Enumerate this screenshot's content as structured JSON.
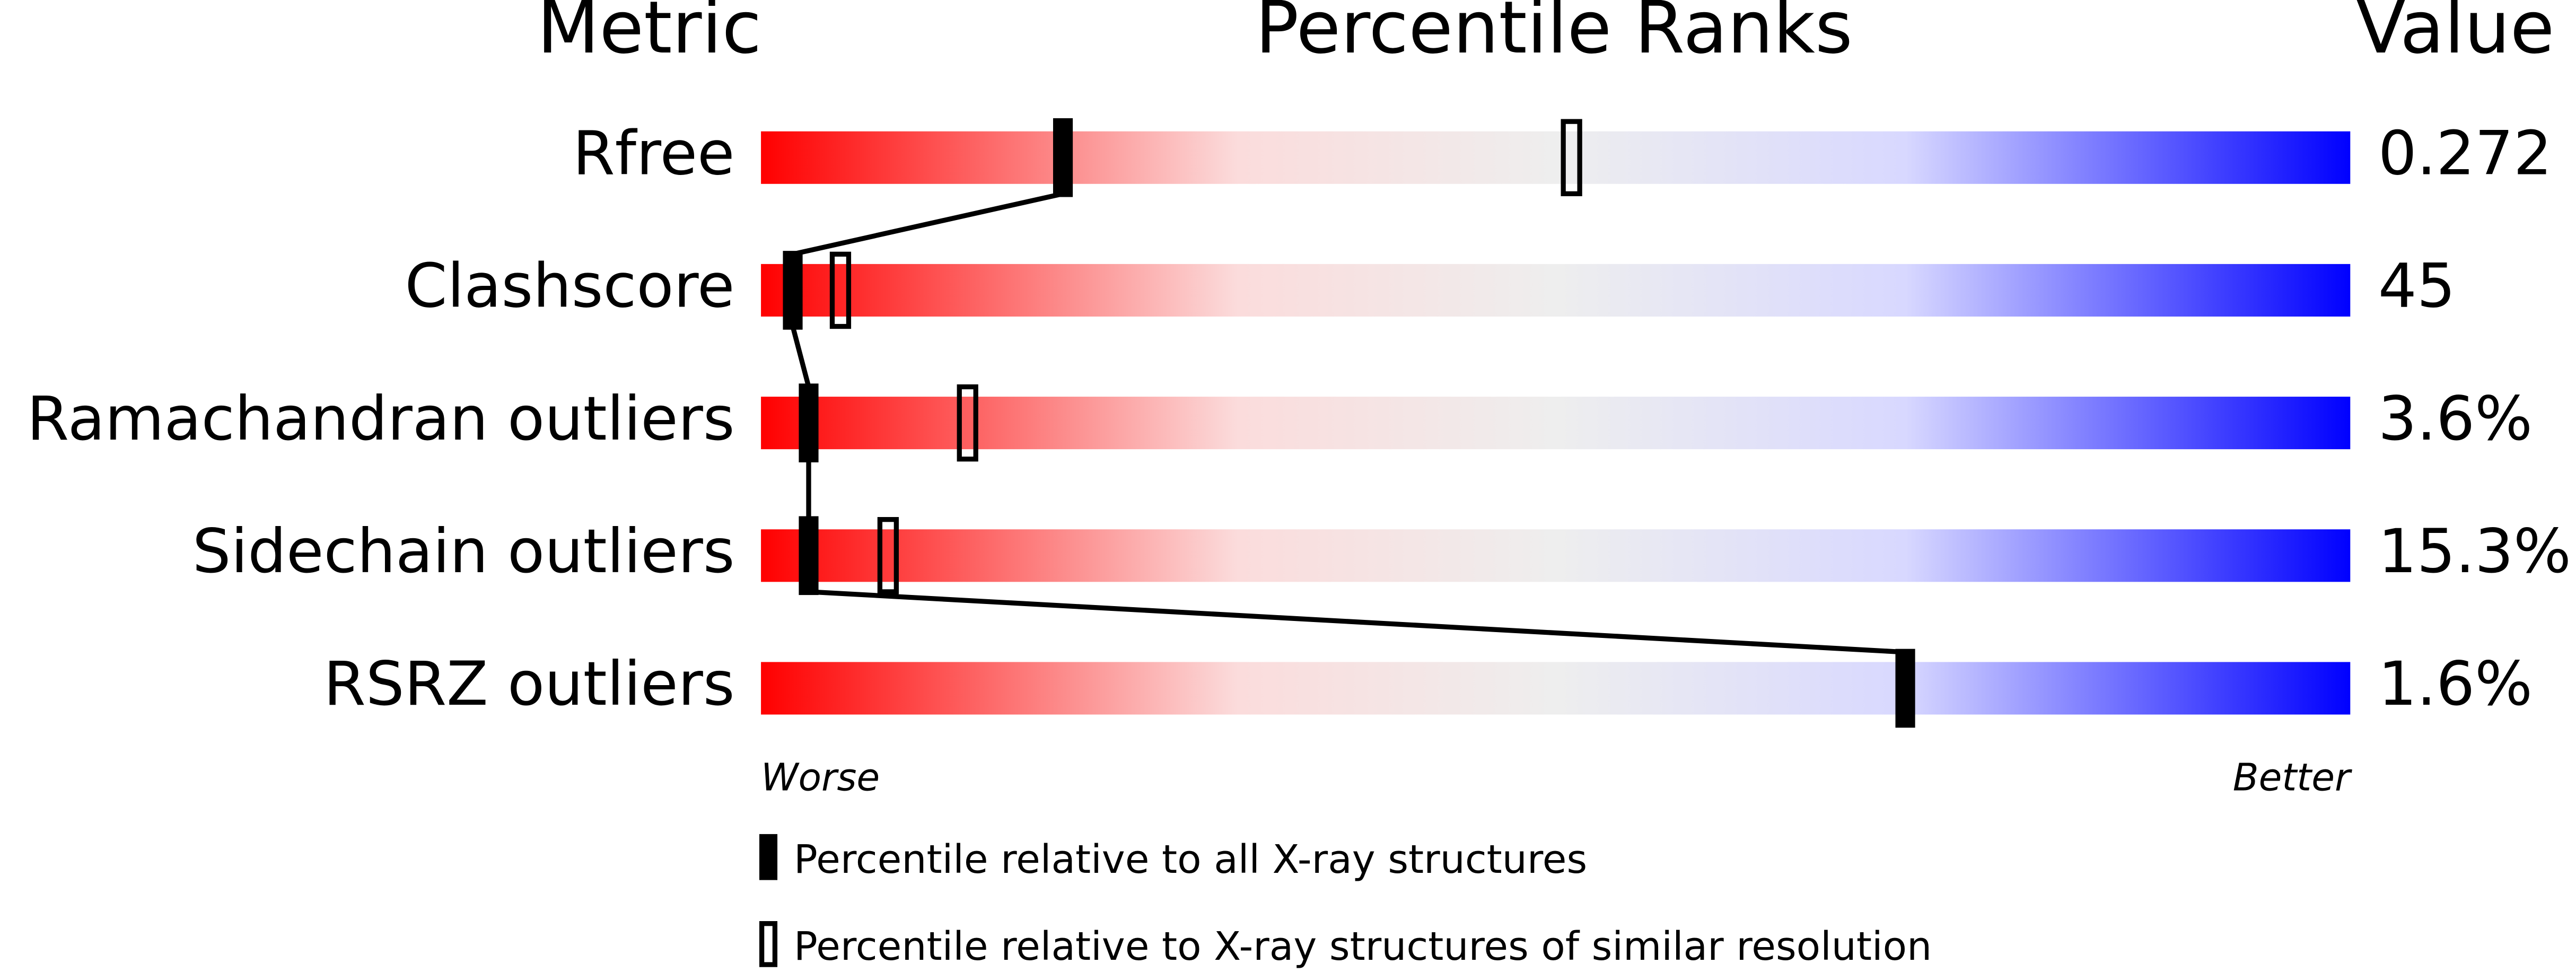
{
  "chart_data": {
    "type": "percentile",
    "headers": {
      "metric": "Metric",
      "ranks": "Percentile Ranks",
      "value": "Value"
    },
    "categories": [
      "Rfree",
      "Clashscore",
      "Ramachandran outliers",
      "Sidechain outliers",
      "RSRZ outliers"
    ],
    "series": [
      {
        "name": "Percentile relative to all X-ray structures",
        "color": "#000000",
        "values": [
          19,
          2,
          3,
          3,
          72
        ]
      },
      {
        "name": "Percentile relative to X-ray structures of similar resolution",
        "color": "#000000",
        "values": [
          51,
          5,
          13,
          8,
          null
        ]
      }
    ],
    "metric_values": [
      "0.272",
      "45",
      "3.6%",
      "15.3%",
      "1.6%"
    ],
    "xlim": [
      0,
      100
    ],
    "axis_labels": {
      "left": "Worse",
      "right": "Better"
    }
  }
}
